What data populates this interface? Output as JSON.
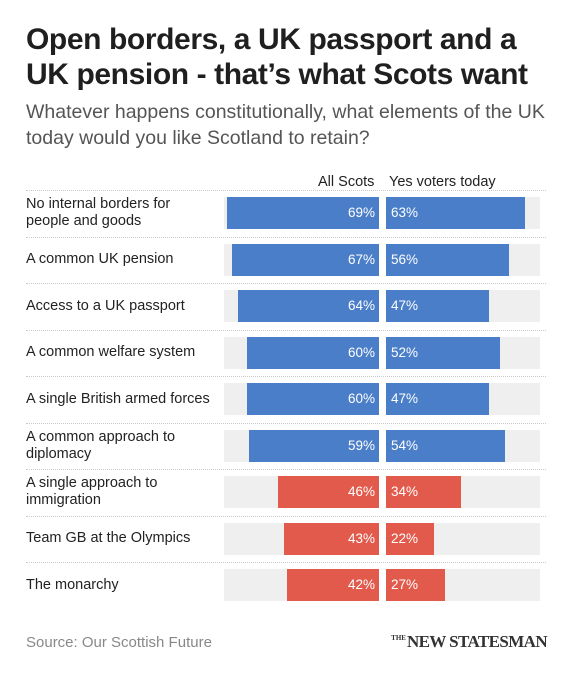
{
  "header": {
    "title": "Open borders, a UK passport and a UK pension - that’s what Scots want",
    "subtitle": "Whatever happens constitutionally, what elements of the UK today would you like Scotland to retain?"
  },
  "columns": {
    "all_scots": "All Scots",
    "yes_voters": "Yes voters today"
  },
  "colors": {
    "blue": "#4a7ec8",
    "red": "#e15a4b",
    "track": "#efefef"
  },
  "chart_data": {
    "type": "bar",
    "title": "Open borders, a UK passport and a UK pension - that’s what Scots want",
    "subtitle": "Whatever happens constitutionally, what elements of the UK today would you like Scotland to retain?",
    "categories": [
      "No internal borders for people and goods",
      "A common UK pension",
      "Access to a UK passport",
      "A common welfare system",
      "A single British armed forces",
      "A common approach to diplomacy",
      "A single approach to immigration",
      "Team GB at the Olympics",
      "The monarchy"
    ],
    "series": [
      {
        "name": "All Scots",
        "values": [
          69,
          67,
          64,
          60,
          60,
          59,
          46,
          43,
          42
        ]
      },
      {
        "name": "Yes voters today",
        "values": [
          63,
          56,
          47,
          52,
          47,
          54,
          34,
          22,
          27
        ]
      }
    ],
    "bar_colors": [
      "#4a7ec8",
      "#4a7ec8",
      "#4a7ec8",
      "#4a7ec8",
      "#4a7ec8",
      "#4a7ec8",
      "#e15a4b",
      "#e15a4b",
      "#e15a4b"
    ],
    "labels": [
      {
        "all": "69%",
        "yes": "63%"
      },
      {
        "all": "67%",
        "yes": "56%"
      },
      {
        "all": "64%",
        "yes": "47%"
      },
      {
        "all": "60%",
        "yes": "52%"
      },
      {
        "all": "60%",
        "yes": "47%"
      },
      {
        "all": "59%",
        "yes": "54%"
      },
      {
        "all": "46%",
        "yes": "34%"
      },
      {
        "all": "43%",
        "yes": "22%"
      },
      {
        "all": "42%",
        "yes": "27%"
      }
    ],
    "xlim": [
      0,
      100
    ]
  },
  "footer": {
    "source": "Source: Our Scottish Future",
    "logo_prefix": "THE",
    "logo_name": "NEW STATESMAN"
  }
}
